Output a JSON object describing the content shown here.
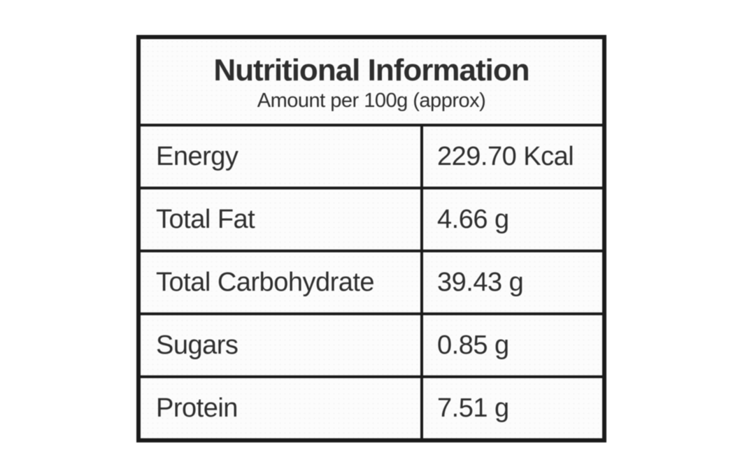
{
  "nutrition_table": {
    "title": "Nutritional Information",
    "subtitle": "Amount per 100g (approx)",
    "rows": [
      {
        "label": "Energy",
        "value": "229.70 Kcal"
      },
      {
        "label": "Total Fat",
        "value": "4.66 g"
      },
      {
        "label": "Total Carbohydrate",
        "value": "39.43 g"
      },
      {
        "label": "Sugars",
        "value": "0.85 g"
      },
      {
        "label": "Protein",
        "value": "7.51 g"
      }
    ],
    "colors": {
      "border": "#1b1b1b",
      "text": "#2e2e2e",
      "table_background": "#fcfcfc",
      "page_background": "#ffffff"
    }
  }
}
